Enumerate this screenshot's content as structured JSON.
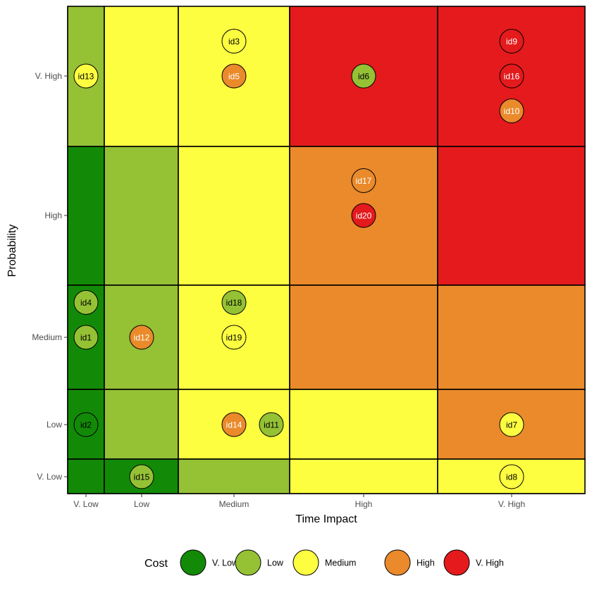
{
  "chart_data": {
    "type": "scatter",
    "xlabel": "Time Impact",
    "ylabel": "Probability",
    "x_categories": [
      "V. Low",
      "Low",
      "Medium",
      "High",
      "V. High"
    ],
    "y_categories": [
      "V. Low",
      "Low",
      "Medium",
      "High",
      "V. High"
    ],
    "grid": false,
    "legend": {
      "title": "Cost",
      "position": "bottom",
      "entries": [
        "V. Low",
        "Low",
        "Medium",
        "High",
        "V. High"
      ]
    },
    "colors": {
      "V. Low": "#138A07",
      "Low": "#95C135",
      "Medium": "#FEFE41",
      "High": "#EA8A2B",
      "V. High": "#E41A1C"
    },
    "cells": [
      {
        "x": "V. Low",
        "y": "V. High",
        "level": "Low"
      },
      {
        "x": "Low",
        "y": "V. High",
        "level": "Medium"
      },
      {
        "x": "Medium",
        "y": "V. High",
        "level": "Medium"
      },
      {
        "x": "High",
        "y": "V. High",
        "level": "V. High"
      },
      {
        "x": "V. High",
        "y": "V. High",
        "level": "V. High"
      },
      {
        "x": "V. Low",
        "y": "High",
        "level": "V. Low"
      },
      {
        "x": "Low",
        "y": "High",
        "level": "Low"
      },
      {
        "x": "Medium",
        "y": "High",
        "level": "Medium"
      },
      {
        "x": "High",
        "y": "High",
        "level": "High"
      },
      {
        "x": "V. High",
        "y": "High",
        "level": "V. High"
      },
      {
        "x": "V. Low",
        "y": "Medium",
        "level": "V. Low"
      },
      {
        "x": "Low",
        "y": "Medium",
        "level": "Low"
      },
      {
        "x": "Medium",
        "y": "Medium",
        "level": "Medium"
      },
      {
        "x": "High",
        "y": "Medium",
        "level": "High"
      },
      {
        "x": "V. High",
        "y": "Medium",
        "level": "High"
      },
      {
        "x": "V. Low",
        "y": "Low",
        "level": "V. Low"
      },
      {
        "x": "Low",
        "y": "Low",
        "level": "Low"
      },
      {
        "x": "Medium",
        "y": "Low",
        "level": "Medium"
      },
      {
        "x": "High",
        "y": "Low",
        "level": "Medium"
      },
      {
        "x": "V. High",
        "y": "Low",
        "level": "High"
      },
      {
        "x": "V. Low",
        "y": "V. Low",
        "level": "V. Low"
      },
      {
        "x": "Low",
        "y": "V. Low",
        "level": "V. Low"
      },
      {
        "x": "Medium",
        "y": "V. Low",
        "level": "Low"
      },
      {
        "x": "High",
        "y": "V. Low",
        "level": "Medium"
      },
      {
        "x": "V. High",
        "y": "V. Low",
        "level": "Medium"
      }
    ],
    "points": [
      {
        "label": "id13",
        "x": "V. Low",
        "y": "V. High",
        "cost": "Medium"
      },
      {
        "label": "id3",
        "x": "Medium",
        "y": "V. High",
        "cost": "Medium"
      },
      {
        "label": "id5",
        "x": "Medium",
        "y": "V. High",
        "cost": "High"
      },
      {
        "label": "id6",
        "x": "High",
        "y": "V. High",
        "cost": "Low"
      },
      {
        "label": "id9",
        "x": "V. High",
        "y": "V. High",
        "cost": "V. High"
      },
      {
        "label": "id16",
        "x": "V. High",
        "y": "V. High",
        "cost": "V. High"
      },
      {
        "label": "id10",
        "x": "V. High",
        "y": "V. High",
        "cost": "High"
      },
      {
        "label": "id17",
        "x": "High",
        "y": "High",
        "cost": "High"
      },
      {
        "label": "id20",
        "x": "High",
        "y": "High",
        "cost": "V. High"
      },
      {
        "label": "id4",
        "x": "V. Low",
        "y": "Medium",
        "cost": "Low"
      },
      {
        "label": "id1",
        "x": "V. Low",
        "y": "Medium",
        "cost": "Low"
      },
      {
        "label": "id12",
        "x": "Low",
        "y": "Medium",
        "cost": "High"
      },
      {
        "label": "id18",
        "x": "Medium",
        "y": "Medium",
        "cost": "Low"
      },
      {
        "label": "id19",
        "x": "Medium",
        "y": "Medium",
        "cost": "Medium"
      },
      {
        "label": "id2",
        "x": "V. Low",
        "y": "Low",
        "cost": "V. Low"
      },
      {
        "label": "id14",
        "x": "Medium",
        "y": "Low",
        "cost": "High"
      },
      {
        "label": "id11",
        "x": "Medium",
        "y": "Low",
        "cost": "Low"
      },
      {
        "label": "id7",
        "x": "V. High",
        "y": "Low",
        "cost": "Medium"
      },
      {
        "label": "id15",
        "x": "Low",
        "y": "V. Low",
        "cost": "Low"
      },
      {
        "label": "id8",
        "x": "V. High",
        "y": "V. Low",
        "cost": "Medium"
      }
    ]
  }
}
